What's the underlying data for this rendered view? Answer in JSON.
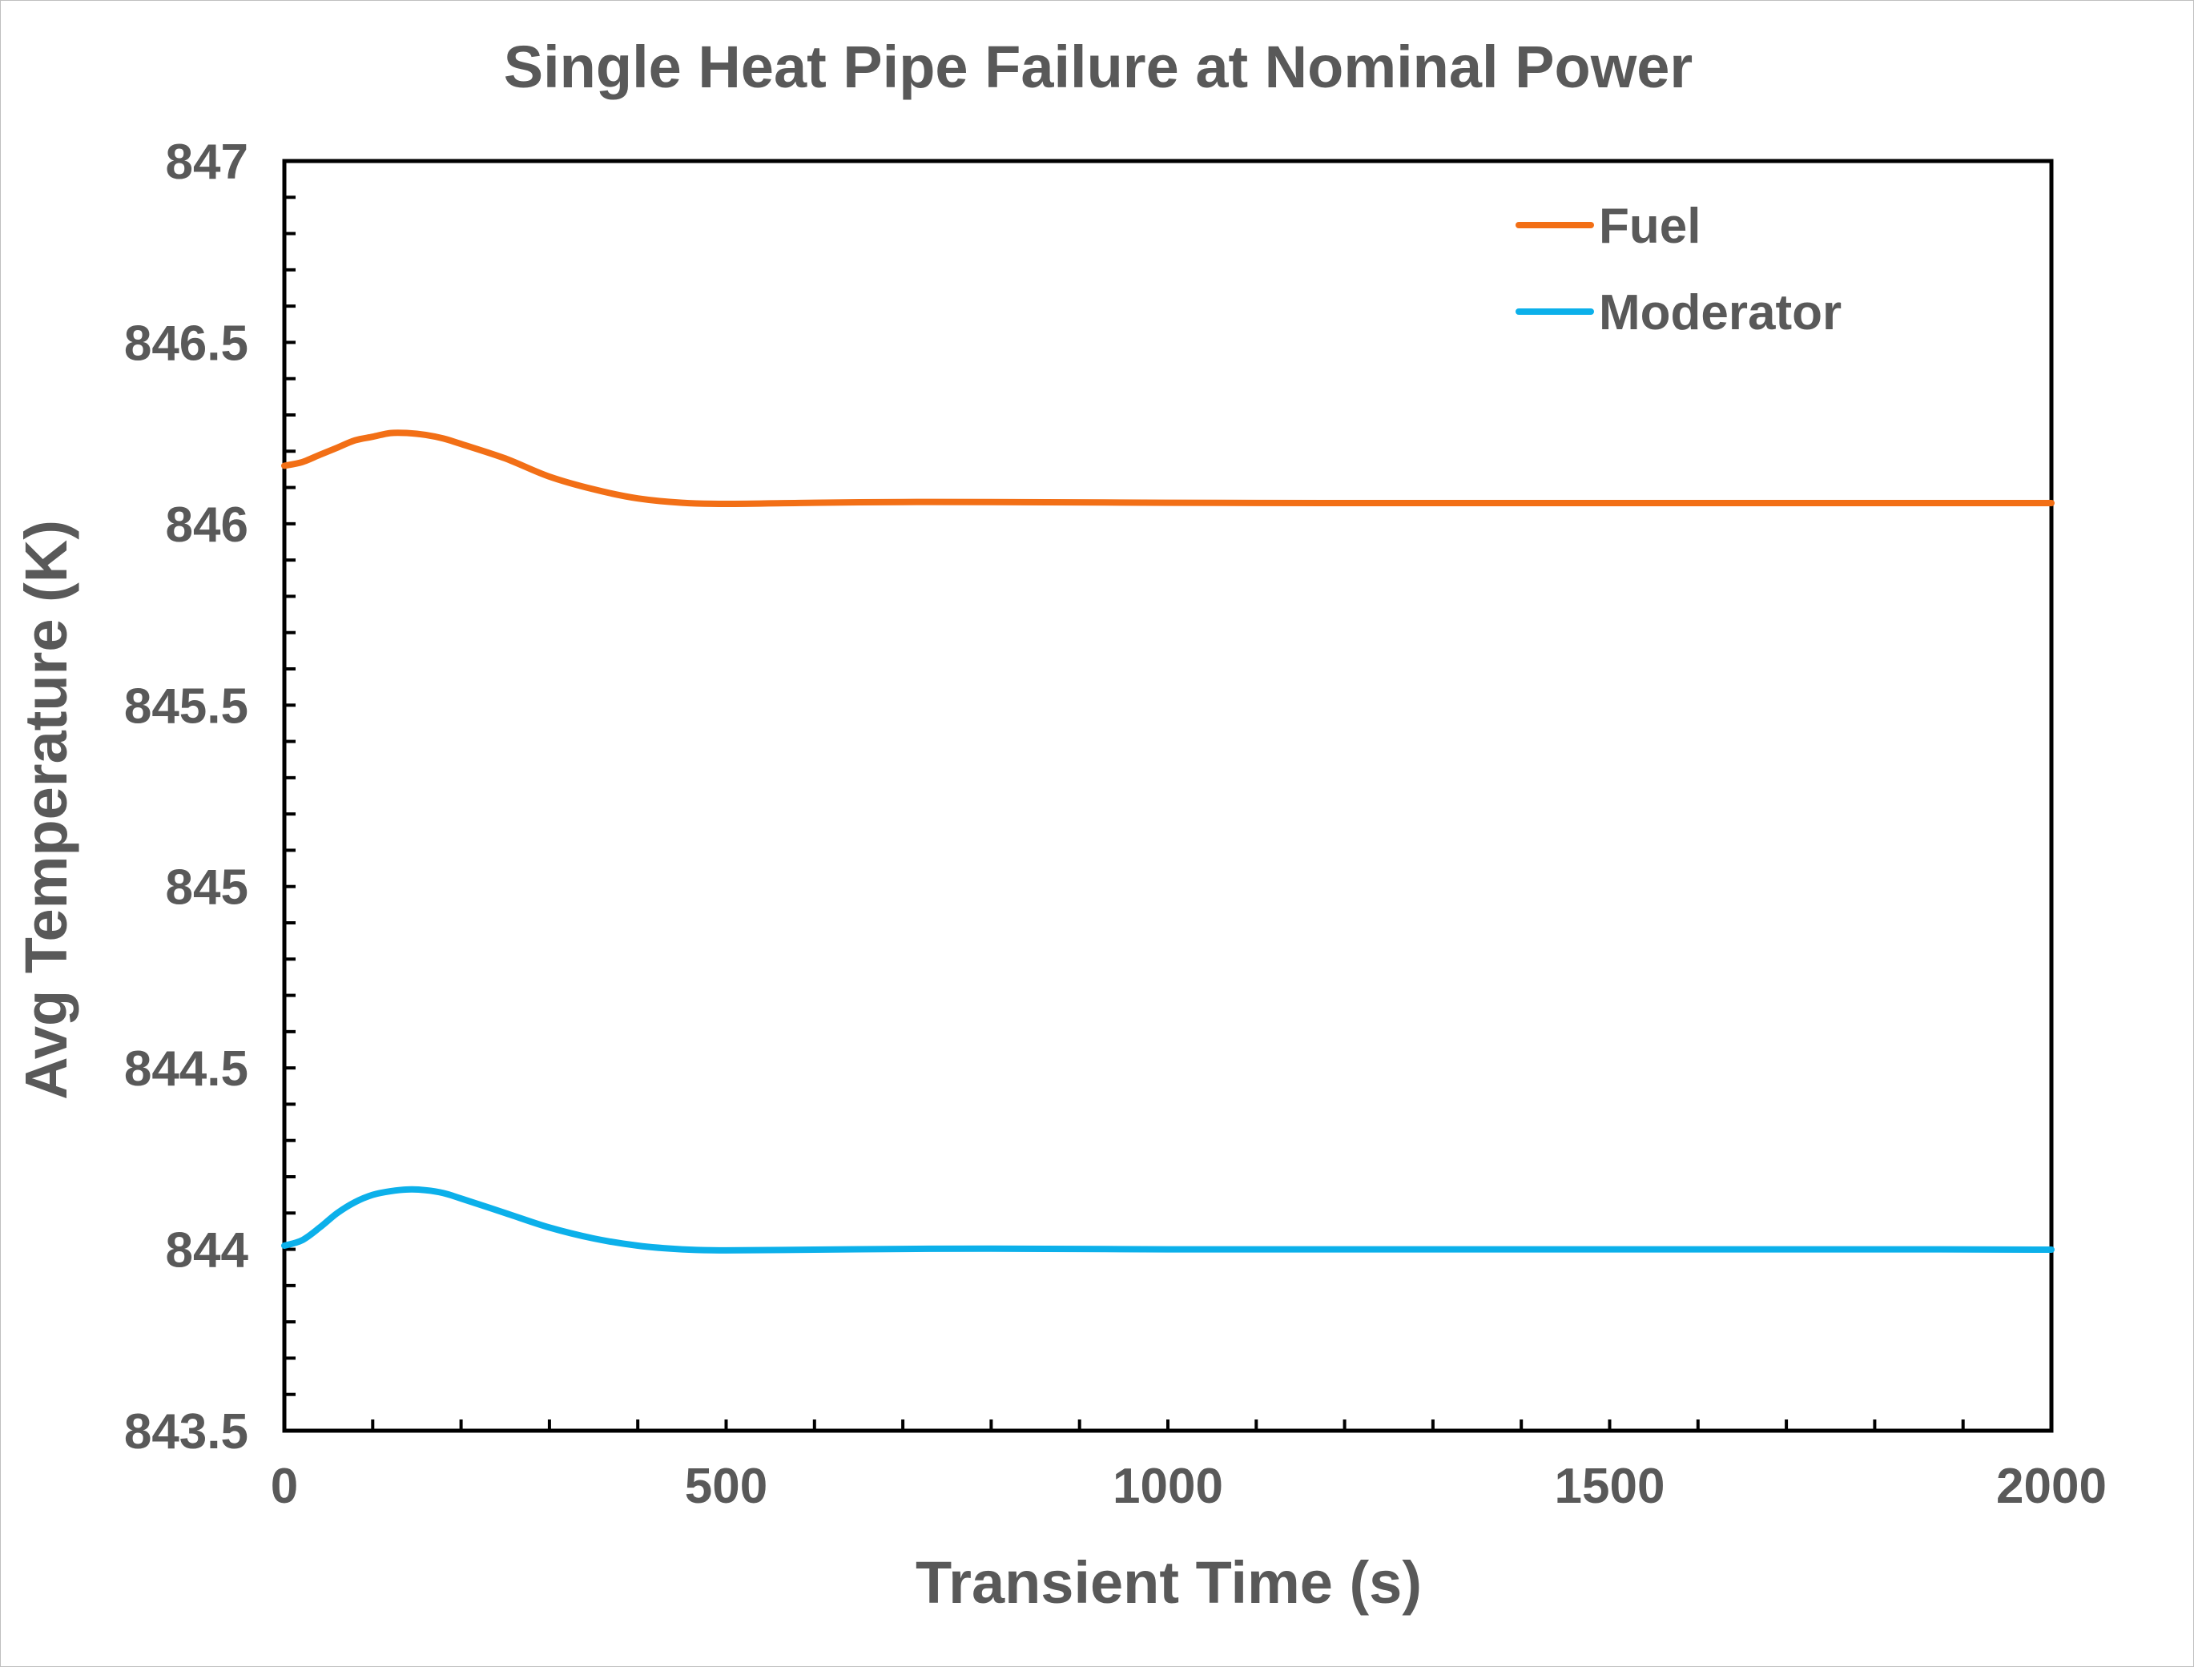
{
  "chart_data": {
    "type": "line",
    "title": "Single Heat Pipe Failure at Nominal Power",
    "xlabel": "Transient Time (s)",
    "ylabel": "Avg Temperature (K)",
    "xlim": [
      0,
      2000
    ],
    "ylim": [
      843.5,
      847
    ],
    "x_ticks": [
      0,
      500,
      1000,
      1500,
      2000
    ],
    "x_tick_labels": [
      "0",
      "500",
      "1000",
      "1500",
      "2000"
    ],
    "y_ticks": [
      843.5,
      844,
      844.5,
      845,
      845.5,
      846,
      846.5,
      847
    ],
    "y_tick_labels": [
      "843.5",
      "844",
      "844.5",
      "845",
      "845.5",
      "846",
      "846.5",
      "847"
    ],
    "x_minor_step": 100,
    "y_minor_step": 0.1,
    "grid": false,
    "legend_position": "top-right",
    "series": [
      {
        "name": "Fuel",
        "color": "#f26f16",
        "x": [
          0,
          20,
          40,
          60,
          80,
          100,
          120,
          140,
          160,
          180,
          200,
          250,
          300,
          350,
          400,
          450,
          500,
          600,
          700,
          800,
          1000,
          1200,
          1400,
          1600,
          1800,
          2000
        ],
        "y": [
          846.16,
          846.17,
          846.19,
          846.21,
          846.23,
          846.24,
          846.25,
          846.25,
          846.245,
          846.235,
          846.22,
          846.18,
          846.13,
          846.095,
          846.07,
          846.058,
          846.055,
          846.058,
          846.06,
          846.06,
          846.058,
          846.057,
          846.057,
          846.057,
          846.057,
          846.057
        ]
      },
      {
        "name": "Moderator",
        "color": "#0cb0ea",
        "x": [
          0,
          20,
          40,
          60,
          80,
          100,
          120,
          140,
          160,
          180,
          200,
          250,
          300,
          350,
          400,
          450,
          500,
          600,
          700,
          800,
          1000,
          1200,
          1400,
          1600,
          1800,
          2000
        ],
        "y": [
          844.01,
          844.025,
          844.06,
          844.1,
          844.13,
          844.15,
          844.16,
          844.165,
          844.163,
          844.155,
          844.14,
          844.1,
          844.06,
          844.03,
          844.01,
          844.0,
          843.997,
          843.999,
          844.001,
          844.002,
          844.0,
          844.0,
          844.0,
          844.0,
          844.0,
          843.999
        ]
      }
    ]
  }
}
